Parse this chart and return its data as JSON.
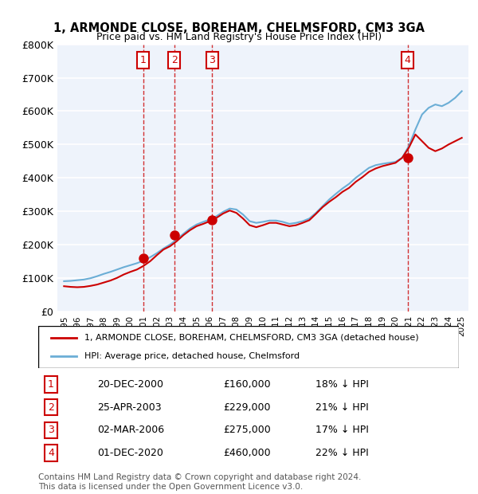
{
  "title1": "1, ARMONDE CLOSE, BOREHAM, CHELMSFORD, CM3 3GA",
  "title2": "Price paid vs. HM Land Registry's House Price Index (HPI)",
  "ylabel": "",
  "background_color": "#eef3fb",
  "plot_bg": "#eef3fb",
  "grid_color": "#ffffff",
  "hpi_color": "#6baed6",
  "price_color": "#cc0000",
  "sale_marker_color": "#cc0000",
  "vline_color": "#cc0000",
  "ylim": [
    0,
    800000
  ],
  "yticks": [
    0,
    100000,
    200000,
    300000,
    400000,
    500000,
    600000,
    700000,
    800000
  ],
  "ytick_labels": [
    "£0",
    "£100K",
    "£200K",
    "£300K",
    "£400K",
    "£500K",
    "£600K",
    "£700K",
    "£800K"
  ],
  "xlim_start": 1994.5,
  "xlim_end": 2025.5,
  "xticks": [
    1995,
    1996,
    1997,
    1998,
    1999,
    2000,
    2001,
    2002,
    2003,
    2004,
    2005,
    2006,
    2007,
    2008,
    2009,
    2010,
    2011,
    2012,
    2013,
    2014,
    2015,
    2016,
    2017,
    2018,
    2019,
    2020,
    2021,
    2022,
    2023,
    2024,
    2025
  ],
  "sales": [
    {
      "label": "1",
      "year": 2000.97,
      "price": 160000,
      "date": "20-DEC-2000",
      "pct": "18%",
      "dir": "↓"
    },
    {
      "label": "2",
      "year": 2003.32,
      "price": 229000,
      "date": "25-APR-2003",
      "pct": "21%",
      "dir": "↓"
    },
    {
      "label": "3",
      "year": 2006.17,
      "price": 275000,
      "date": "02-MAR-2006",
      "pct": "17%",
      "dir": "↓"
    },
    {
      "label": "4",
      "year": 2020.92,
      "price": 460000,
      "date": "01-DEC-2020",
      "pct": "22%",
      "dir": "↓"
    }
  ],
  "hpi_years": [
    1995,
    1995.5,
    1996,
    1996.5,
    1997,
    1997.5,
    1998,
    1998.5,
    1999,
    1999.5,
    2000,
    2000.5,
    2001,
    2001.5,
    2002,
    2002.5,
    2003,
    2003.5,
    2004,
    2004.5,
    2005,
    2005.5,
    2006,
    2006.5,
    2007,
    2007.5,
    2008,
    2008.5,
    2009,
    2009.5,
    2010,
    2010.5,
    2011,
    2011.5,
    2012,
    2012.5,
    2013,
    2013.5,
    2014,
    2014.5,
    2015,
    2015.5,
    2016,
    2016.5,
    2017,
    2017.5,
    2018,
    2018.5,
    2019,
    2019.5,
    2020,
    2020.5,
    2021,
    2021.5,
    2022,
    2022.5,
    2023,
    2023.5,
    2024,
    2024.5,
    2025
  ],
  "hpi_values": [
    90000,
    91000,
    93000,
    95000,
    99000,
    105000,
    112000,
    118000,
    125000,
    132000,
    138000,
    144000,
    152000,
    162000,
    174000,
    188000,
    200000,
    215000,
    232000,
    248000,
    260000,
    268000,
    275000,
    285000,
    298000,
    308000,
    305000,
    290000,
    270000,
    265000,
    268000,
    272000,
    272000,
    268000,
    262000,
    265000,
    270000,
    278000,
    295000,
    315000,
    335000,
    352000,
    368000,
    382000,
    400000,
    415000,
    430000,
    438000,
    442000,
    445000,
    448000,
    460000,
    495000,
    545000,
    590000,
    610000,
    620000,
    615000,
    625000,
    640000,
    660000
  ],
  "price_years": [
    1995,
    1995.5,
    1996,
    1996.5,
    1997,
    1997.5,
    1998,
    1998.5,
    1999,
    1999.5,
    2000,
    2000.5,
    2001,
    2001.5,
    2002,
    2002.5,
    2003,
    2003.5,
    2004,
    2004.5,
    2005,
    2005.5,
    2006,
    2006.5,
    2007,
    2007.5,
    2008,
    2008.5,
    2009,
    2009.5,
    2010,
    2010.5,
    2011,
    2011.5,
    2012,
    2012.5,
    2013,
    2013.5,
    2014,
    2014.5,
    2015,
    2015.5,
    2016,
    2016.5,
    2017,
    2017.5,
    2018,
    2018.5,
    2019,
    2019.5,
    2020,
    2020.5,
    2021,
    2021.5,
    2022,
    2022.5,
    2023,
    2023.5,
    2024,
    2024.5,
    2025
  ],
  "price_values": [
    75000,
    73000,
    72000,
    73000,
    76000,
    80000,
    86000,
    92000,
    100000,
    110000,
    118000,
    125000,
    136000,
    150000,
    168000,
    185000,
    195000,
    210000,
    228000,
    243000,
    255000,
    262000,
    270000,
    280000,
    293000,
    302000,
    295000,
    278000,
    258000,
    252000,
    258000,
    265000,
    265000,
    260000,
    255000,
    258000,
    265000,
    273000,
    292000,
    312000,
    328000,
    342000,
    358000,
    370000,
    388000,
    402000,
    418000,
    428000,
    435000,
    440000,
    445000,
    460000,
    490000,
    530000,
    510000,
    490000,
    480000,
    488000,
    500000,
    510000,
    520000
  ],
  "legend_label_red": "1, ARMONDE CLOSE, BOREHAM, CHELMSFORD, CM3 3GA (detached house)",
  "legend_label_blue": "HPI: Average price, detached house, Chelmsford",
  "footnote": "Contains HM Land Registry data © Crown copyright and database right 2024.\nThis data is licensed under the Open Government Licence v3.0.",
  "table_entries": [
    {
      "num": "1",
      "date": "20-DEC-2000",
      "price": "£160,000",
      "pct": "18% ↓ HPI"
    },
    {
      "num": "2",
      "date": "25-APR-2003",
      "price": "£229,000",
      "pct": "21% ↓ HPI"
    },
    {
      "num": "3",
      "date": "02-MAR-2006",
      "price": "£275,000",
      "pct": "17% ↓ HPI"
    },
    {
      "num": "4",
      "date": "01-DEC-2020",
      "price": "£460,000",
      "pct": "22% ↓ HPI"
    }
  ]
}
